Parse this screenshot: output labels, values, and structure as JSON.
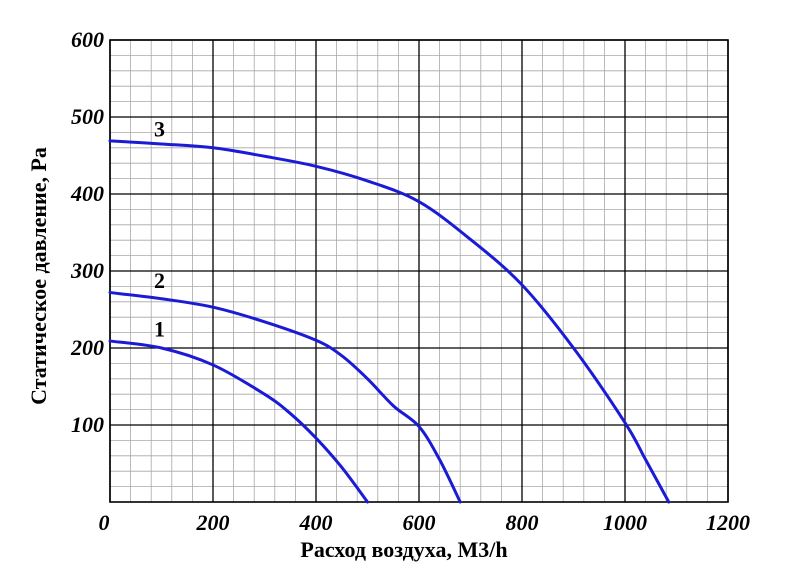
{
  "chart_data": {
    "type": "line",
    "title": "",
    "xlabel": "Расход воздуха, М3/h",
    "ylabel": "Статическое давление, Ра",
    "xlim": [
      0,
      1200
    ],
    "ylim": [
      0,
      600
    ],
    "x_major_ticks": [
      0,
      200,
      400,
      600,
      800,
      1000,
      1200
    ],
    "y_major_ticks": [
      100,
      200,
      300,
      400,
      500,
      600
    ],
    "x_tick_labels": [
      "0",
      "200",
      "400",
      "600",
      "800",
      "1000",
      "1200"
    ],
    "y_tick_labels": [
      "100",
      "200",
      "300",
      "400",
      "500",
      "600"
    ],
    "x_minor_step": 40,
    "y_minor_step": 20,
    "grid": true,
    "line_color": "#1b1bd6",
    "series": [
      {
        "name": "1",
        "label_at": [
          100,
          215
        ],
        "points": [
          [
            0,
            209
          ],
          [
            100,
            200
          ],
          [
            200,
            178
          ],
          [
            300,
            140
          ],
          [
            350,
            115
          ],
          [
            400,
            83
          ],
          [
            450,
            45
          ],
          [
            500,
            0
          ]
        ]
      },
      {
        "name": "2",
        "label_at": [
          100,
          278
        ],
        "points": [
          [
            0,
            272
          ],
          [
            100,
            264
          ],
          [
            200,
            253
          ],
          [
            300,
            234
          ],
          [
            400,
            210
          ],
          [
            450,
            190
          ],
          [
            500,
            160
          ],
          [
            550,
            125
          ],
          [
            600,
            98
          ],
          [
            640,
            55
          ],
          [
            680,
            0
          ]
        ]
      },
      {
        "name": "3",
        "label_at": [
          100,
          475
        ],
        "points": [
          [
            0,
            469
          ],
          [
            100,
            465
          ],
          [
            200,
            460
          ],
          [
            300,
            449
          ],
          [
            400,
            436
          ],
          [
            500,
            417
          ],
          [
            600,
            390
          ],
          [
            700,
            341
          ],
          [
            800,
            282
          ],
          [
            900,
            200
          ],
          [
            1000,
            103
          ],
          [
            1040,
            55
          ],
          [
            1085,
            0
          ]
        ]
      }
    ]
  }
}
